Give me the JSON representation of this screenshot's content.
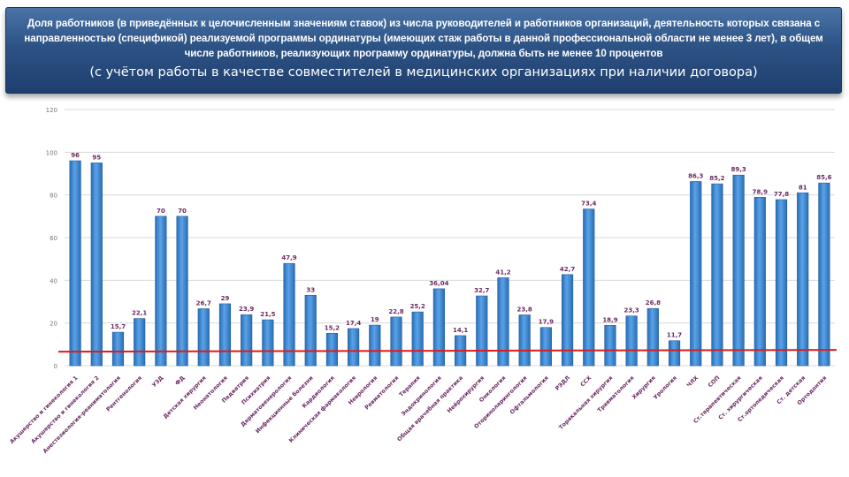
{
  "header": {
    "title": "Доля работников (в приведённых к целочисленным значениям ставок) из числа руководителей и работников организаций, деятельность которых связана с направленностью (спецификой) реализуемой программы ординатуры (имеющих стаж работы в данной профессиональной области не менее 3 лет), в общем числе работников, реализующих программу ординатуры, должна быть не менее 10 процентов",
    "subtitle": "(с учётом работы в качестве совместителей в медицинских организациях при наличии договора)"
  },
  "colors": {
    "bar": "#3d86d2",
    "bar_edge": "#1f5f9e",
    "label": "#6b2a63",
    "threshold": "#e01a1a",
    "banner": "#2d5385"
  },
  "chart_data": {
    "type": "bar",
    "categories": [
      "Акушерство и гинекология 1",
      "Акушерство и гинекология 2",
      "Анестезиология-реаниматология",
      "Рентгенология",
      "УЗД",
      "ФД",
      "Детская хирургия",
      "Неонатология",
      "Педиатрия",
      "Психиатрия",
      "Дерматовенерология",
      "Инфекционные болезни",
      "Кардиология",
      "Клиническая фармакология",
      "Неврология",
      "Ревматология",
      "Терапия",
      "Эндокринология",
      "Общая врачебная практика",
      "Нейрохирургия",
      "Онкология",
      "Оториноларингология",
      "Офтальмология",
      "РЭДЛ",
      "ССХ",
      "Торакальная хирургия",
      "Травматология",
      "Хирургия",
      "Урология",
      "ЧЛХ",
      "СОП",
      "Ст.терапевтическая",
      "Ст. хирургическая",
      "Ст.ортопедическая",
      "Ст. детская",
      "Ортодонтия"
    ],
    "values": [
      96,
      95,
      15.7,
      22.1,
      70,
      70,
      26.7,
      29,
      23.9,
      21.5,
      47.9,
      33,
      15.2,
      17.4,
      19,
      22.8,
      25.2,
      36.04,
      14.1,
      32.7,
      41.2,
      23.8,
      17.9,
      42.7,
      73.4,
      18.9,
      23.3,
      26.8,
      11.7,
      86.3,
      85.2,
      89.3,
      78.9,
      77.8,
      81,
      85.6
    ],
    "value_labels": [
      "96",
      "95",
      "15,7",
      "22,1",
      "70",
      "70",
      "26,7",
      "29",
      "23,9",
      "21,5",
      "47,9",
      "33",
      "15,2",
      "17,4",
      "19",
      "22,8",
      "25,2",
      "36,04",
      "14,1",
      "32,7",
      "41,2",
      "23,8",
      "17,9",
      "42,7",
      "73,4",
      "18,9",
      "23,3",
      "26,8",
      "11,7",
      "86,3",
      "85,2",
      "89,3",
      "78,9",
      "77,8",
      "81",
      "85,6"
    ],
    "ylim": [
      0,
      120
    ],
    "yticks": [
      "0",
      "20",
      "40",
      "60",
      "80",
      "100",
      "120"
    ],
    "threshold": 7,
    "grid": true,
    "legend": "none",
    "xlabel": "",
    "ylabel": ""
  }
}
